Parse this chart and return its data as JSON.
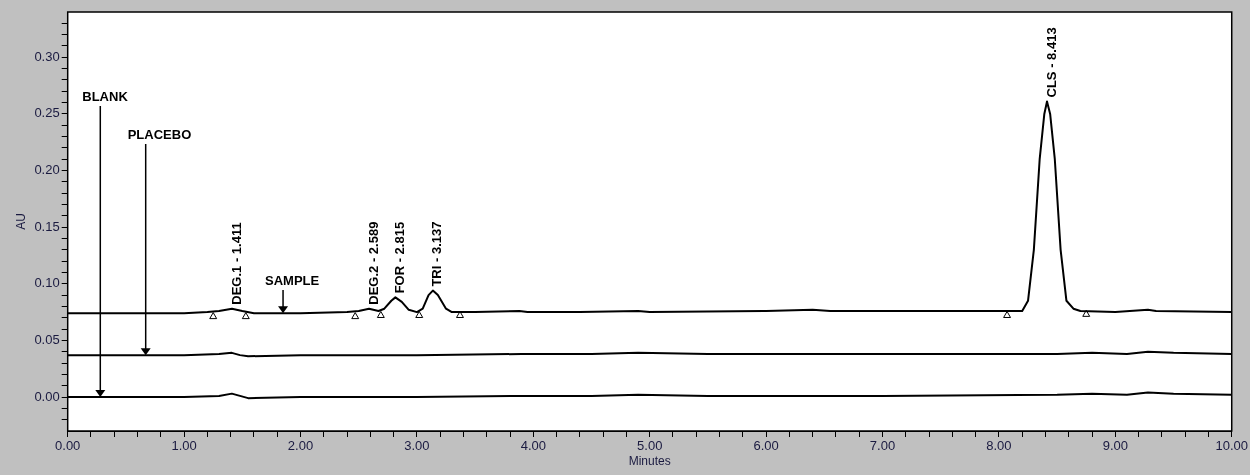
{
  "chart_data": {
    "type": "line",
    "xlabel": "Minutes",
    "ylabel": "AU",
    "xlim": [
      0,
      10
    ],
    "ylim": [
      -0.03,
      0.34
    ],
    "xticks": [
      {
        "value": 0,
        "label": "0.00"
      },
      {
        "value": 0.2,
        "label": null
      },
      {
        "value": 0.4,
        "label": null
      },
      {
        "value": 0.6,
        "label": null
      },
      {
        "value": 0.8,
        "label": null
      },
      {
        "value": 1,
        "label": "1.00"
      },
      {
        "value": 1.2,
        "label": null
      },
      {
        "value": 1.4,
        "label": null
      },
      {
        "value": 1.6,
        "label": null
      },
      {
        "value": 1.8,
        "label": null
      },
      {
        "value": 2,
        "label": "2.00"
      },
      {
        "value": 2.2,
        "label": null
      },
      {
        "value": 2.4,
        "label": null
      },
      {
        "value": 2.6,
        "label": null
      },
      {
        "value": 2.8,
        "label": null
      },
      {
        "value": 3,
        "label": "3.00"
      },
      {
        "value": 3.2,
        "label": null
      },
      {
        "value": 3.4,
        "label": null
      },
      {
        "value": 3.6,
        "label": null
      },
      {
        "value": 3.8,
        "label": null
      },
      {
        "value": 4,
        "label": "4.00"
      },
      {
        "value": 4.2,
        "label": null
      },
      {
        "value": 4.4,
        "label": null
      },
      {
        "value": 4.6,
        "label": null
      },
      {
        "value": 4.8,
        "label": null
      },
      {
        "value": 5,
        "label": "5.00"
      },
      {
        "value": 5.2,
        "label": null
      },
      {
        "value": 5.4,
        "label": null
      },
      {
        "value": 5.6,
        "label": null
      },
      {
        "value": 5.8,
        "label": null
      },
      {
        "value": 6,
        "label": "6.00"
      },
      {
        "value": 6.2,
        "label": null
      },
      {
        "value": 6.4,
        "label": null
      },
      {
        "value": 6.6,
        "label": null
      },
      {
        "value": 6.8,
        "label": null
      },
      {
        "value": 7,
        "label": "7.00"
      },
      {
        "value": 7.2,
        "label": null
      },
      {
        "value": 7.4,
        "label": null
      },
      {
        "value": 7.6,
        "label": null
      },
      {
        "value": 7.8,
        "label": null
      },
      {
        "value": 8,
        "label": "8.00"
      },
      {
        "value": 8.2,
        "label": null
      },
      {
        "value": 8.4,
        "label": null
      },
      {
        "value": 8.6,
        "label": null
      },
      {
        "value": 8.8,
        "label": null
      },
      {
        "value": 9,
        "label": "9.00"
      },
      {
        "value": 9.2,
        "label": null
      },
      {
        "value": 9.4,
        "label": null
      },
      {
        "value": 9.6,
        "label": null
      },
      {
        "value": 9.8,
        "label": null
      },
      {
        "value": 10,
        "label": "10.00"
      }
    ],
    "yticks": [
      {
        "value": -0.02,
        "label": null
      },
      {
        "value": -0.01,
        "label": null
      },
      {
        "value": 0,
        "label": "0.00"
      },
      {
        "value": 0.01,
        "label": null
      },
      {
        "value": 0.02,
        "label": null
      },
      {
        "value": 0.03,
        "label": null
      },
      {
        "value": 0.04,
        "label": null
      },
      {
        "value": 0.05,
        "label": "0.05"
      },
      {
        "value": 0.06,
        "label": null
      },
      {
        "value": 0.07,
        "label": null
      },
      {
        "value": 0.08,
        "label": null
      },
      {
        "value": 0.09,
        "label": null
      },
      {
        "value": 0.1,
        "label": "0.10"
      },
      {
        "value": 0.11,
        "label": null
      },
      {
        "value": 0.12,
        "label": null
      },
      {
        "value": 0.13,
        "label": null
      },
      {
        "value": 0.14,
        "label": null
      },
      {
        "value": 0.15,
        "label": "0.15"
      },
      {
        "value": 0.16,
        "label": null
      },
      {
        "value": 0.17,
        "label": null
      },
      {
        "value": 0.18,
        "label": null
      },
      {
        "value": 0.19,
        "label": null
      },
      {
        "value": 0.2,
        "label": "0.20"
      },
      {
        "value": 0.21,
        "label": null
      },
      {
        "value": 0.22,
        "label": null
      },
      {
        "value": 0.23,
        "label": null
      },
      {
        "value": 0.24,
        "label": null
      },
      {
        "value": 0.25,
        "label": "0.25"
      },
      {
        "value": 0.26,
        "label": null
      },
      {
        "value": 0.27,
        "label": null
      },
      {
        "value": 0.28,
        "label": null
      },
      {
        "value": 0.29,
        "label": null
      },
      {
        "value": 0.3,
        "label": "0.30"
      },
      {
        "value": 0.31,
        "label": null
      },
      {
        "value": 0.32,
        "label": null
      },
      {
        "value": 0.33,
        "label": null
      }
    ],
    "grid": false,
    "legend": false,
    "marker": "none",
    "line_style": "solid",
    "series": [
      {
        "name": "BLANK",
        "color": "#000000",
        "x": [
          0,
          1.0,
          1.3,
          1.41,
          1.48,
          1.55,
          2.0,
          3.0,
          3.9,
          4.5,
          4.9,
          5.5,
          7.0,
          8.5,
          8.8,
          9.1,
          9.28,
          9.5,
          10
        ],
        "values": [
          0,
          0,
          0.001,
          0.003,
          0.001,
          -0.001,
          0,
          0,
          0.001,
          0.001,
          0.002,
          0.001,
          0.001,
          0.002,
          0.003,
          0.002,
          0.004,
          0.003,
          0.002
        ]
      },
      {
        "name": "PLACEBO",
        "color": "#000000",
        "x": [
          0,
          1.0,
          1.3,
          1.41,
          1.48,
          1.55,
          2.0,
          3.0,
          3.9,
          4.5,
          4.9,
          5.5,
          7.0,
          8.5,
          8.8,
          9.1,
          9.28,
          9.5,
          10
        ],
        "values": [
          0.037,
          0.037,
          0.038,
          0.039,
          0.037,
          0.036,
          0.037,
          0.037,
          0.038,
          0.038,
          0.039,
          0.038,
          0.038,
          0.038,
          0.039,
          0.038,
          0.04,
          0.039,
          0.038
        ]
      },
      {
        "name": "SAMPLE",
        "color": "#000000",
        "x": [
          0,
          1.0,
          1.2,
          1.3,
          1.411,
          1.5,
          1.6,
          2.0,
          2.4,
          2.5,
          2.589,
          2.67,
          2.72,
          2.78,
          2.815,
          2.87,
          2.93,
          3.0,
          3.05,
          3.1,
          3.137,
          3.18,
          3.25,
          3.3,
          3.5,
          3.88,
          3.95,
          4.4,
          4.9,
          5.0,
          6.0,
          6.4,
          6.55,
          8.15,
          8.2,
          8.25,
          8.3,
          8.35,
          8.39,
          8.413,
          8.44,
          8.48,
          8.53,
          8.58,
          8.64,
          8.7,
          9.0,
          9.28,
          9.35,
          10
        ],
        "values": [
          0.074,
          0.074,
          0.075,
          0.076,
          0.078,
          0.076,
          0.074,
          0.074,
          0.075,
          0.076,
          0.078,
          0.076,
          0.078,
          0.085,
          0.088,
          0.084,
          0.077,
          0.075,
          0.078,
          0.09,
          0.094,
          0.09,
          0.078,
          0.075,
          0.075,
          0.076,
          0.075,
          0.075,
          0.076,
          0.075,
          0.076,
          0.077,
          0.076,
          0.076,
          0.076,
          0.085,
          0.13,
          0.21,
          0.25,
          0.261,
          0.25,
          0.21,
          0.13,
          0.085,
          0.078,
          0.076,
          0.075,
          0.077,
          0.076,
          0.075
        ]
      },
      {
        "type": "scatter",
        "marker": "triangle",
        "color": "#000000",
        "x": [
          1.25,
          1.53,
          2.47,
          2.69,
          3.02,
          3.37,
          8.07,
          8.75
        ],
        "values": [
          0.071,
          0.071,
          0.071,
          0.072,
          0.072,
          0.072,
          0.072,
          0.073
        ]
      }
    ],
    "annotations": [
      {
        "text": "DEG.1 - 1.411",
        "x": 1.411,
        "y": 0.078
      },
      {
        "text": "DEG.2 - 2.589",
        "x": 2.589,
        "y": 0.078
      },
      {
        "text": "FOR - 2.815",
        "x": 2.815,
        "y": 0.088
      },
      {
        "text": "TRI - 3.137",
        "x": 3.137,
        "y": 0.094
      },
      {
        "text": "CLS - 8.413",
        "x": 8.413,
        "y": 0.261
      }
    ]
  }
}
